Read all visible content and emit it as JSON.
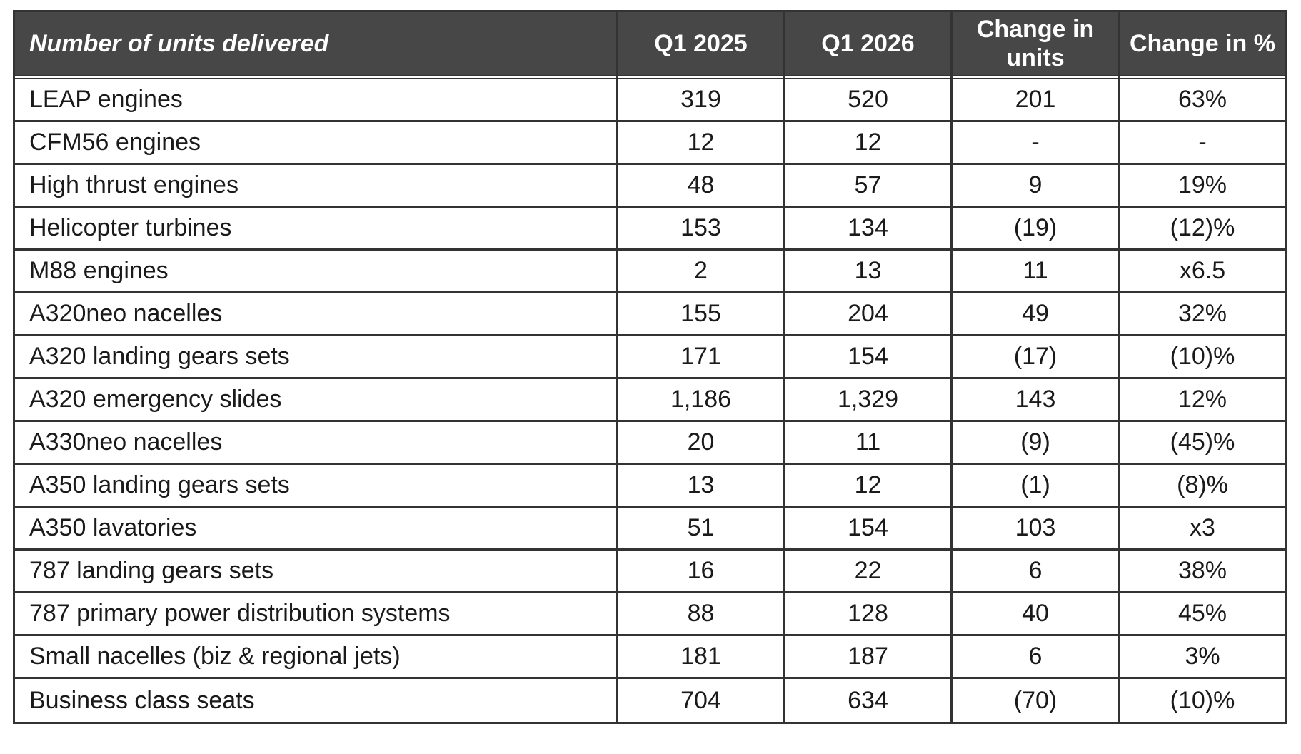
{
  "page": {
    "background": "#ffffff"
  },
  "colors": {
    "header_background": "#474747",
    "header_text": "#ffffff",
    "body_text": "#1a1a1a",
    "border": "#333333",
    "row_background": "#ffffff"
  },
  "table": {
    "header": {
      "title": "Number of units delivered",
      "columns": [
        "Q1 2025",
        "Q1 2026",
        "Change in units",
        "Change in %"
      ]
    },
    "rows": [
      [
        "LEAP engines",
        "319",
        "520",
        "201",
        "63%"
      ],
      [
        "CFM56 engines",
        "12",
        "12",
        "-",
        "-"
      ],
      [
        "High thrust engines",
        "48",
        "57",
        "9",
        "19%"
      ],
      [
        "Helicopter turbines",
        "153",
        "134",
        "(19)",
        "(12)%"
      ],
      [
        "M88 engines",
        "2",
        "13",
        "11",
        "x6.5"
      ],
      [
        "A320neo nacelles",
        "155",
        "204",
        "49",
        "32%"
      ],
      [
        "A320 landing gears sets",
        "171",
        "154",
        "(17)",
        "(10)%"
      ],
      [
        "A320 emergency slides",
        "1,186",
        "1,329",
        "143",
        "12%"
      ],
      [
        "A330neo nacelles",
        "20",
        "11",
        "(9)",
        "(45)%"
      ],
      [
        "A350 landing gears sets",
        "13",
        "12",
        "(1)",
        "(8)%"
      ],
      [
        "A350 lavatories",
        "51",
        "154",
        "103",
        "x3"
      ],
      [
        "787 landing gears sets",
        "16",
        "22",
        "6",
        "38%"
      ],
      [
        "787 primary power distribution systems",
        "88",
        "128",
        "40",
        "45%"
      ],
      [
        "Small nacelles (biz & regional jets)",
        "181",
        "187",
        "6",
        "3%"
      ],
      [
        "Business class seats",
        "704",
        "634",
        "(70)",
        "(10)%"
      ]
    ]
  }
}
